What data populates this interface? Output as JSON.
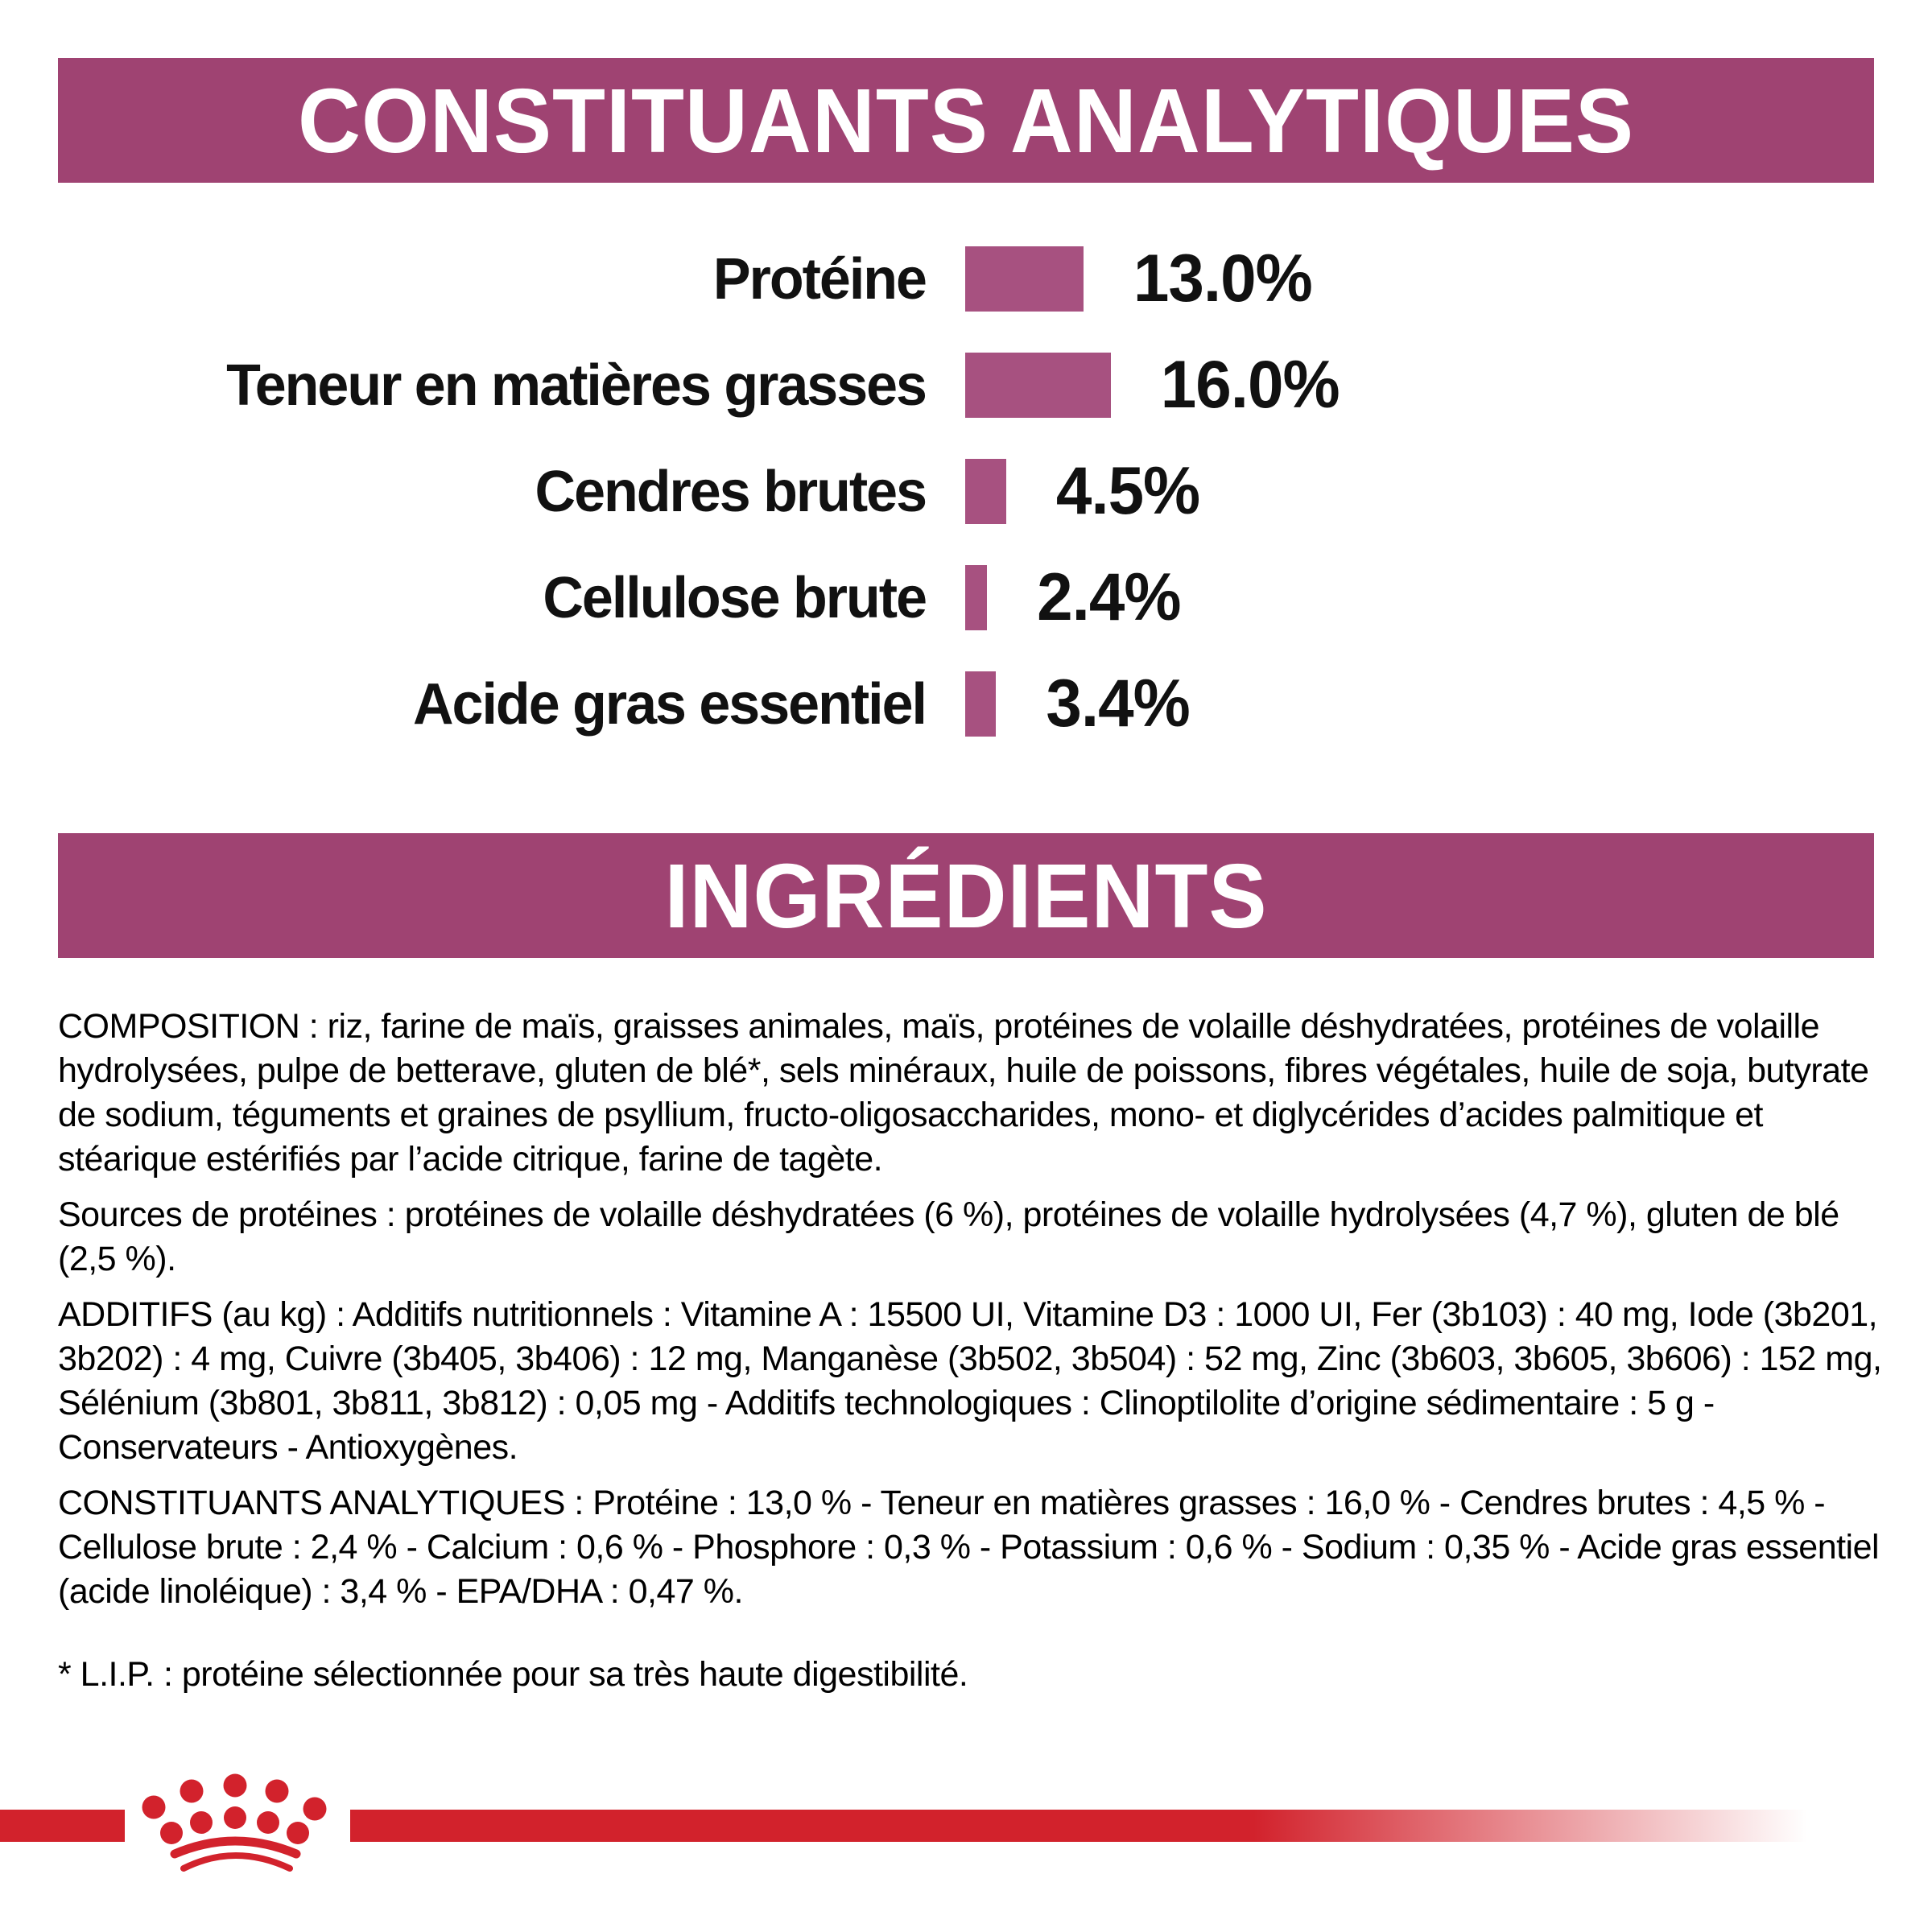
{
  "colors": {
    "band_plum": "#9F4372",
    "bar_magenta": "#A75180",
    "brand_red": "#D2222C",
    "text": "#111111"
  },
  "analytical_constituents": {
    "title": "CONSTITUANTS ANALYTIQUES",
    "rows": [
      {
        "label": "Protéine",
        "value_label": "13.0%",
        "pct": 13.0
      },
      {
        "label": "Teneur en matières grasses",
        "value_label": "16.0%",
        "pct": 16.0
      },
      {
        "label": "Cendres brutes",
        "value_label": "4.5%",
        "pct": 4.5
      },
      {
        "label": "Cellulose brute",
        "value_label": "2.4%",
        "pct": 2.4
      },
      {
        "label": "Acide gras essentiel",
        "value_label": "3.4%",
        "pct": 3.4
      }
    ]
  },
  "chart_data": {
    "type": "bar",
    "orientation": "horizontal",
    "title": "CONSTITUANTS ANALYTIQUES",
    "categories": [
      "Protéine",
      "Teneur en matières grasses",
      "Cendres brutes",
      "Cellulose brute",
      "Acide gras essentiel"
    ],
    "values": [
      13.0,
      16.0,
      4.5,
      2.4,
      3.4
    ],
    "value_labels": [
      "13.0%",
      "16.0%",
      "4.5%",
      "2.4%",
      "3.4%"
    ],
    "unit": "%",
    "xlim": [
      0,
      16
    ],
    "grid": false,
    "legend": false,
    "bar_color": "#A75180"
  },
  "ingredients": {
    "title": "INGRÉDIENTS",
    "paragraphs": [
      "COMPOSITION : riz, farine de maïs, graisses animales, maïs, protéines de volaille déshydratées, protéines de volaille hydrolysées, pulpe de betterave, gluten de blé*, sels minéraux, huile de poissons, fibres végétales, huile de soja, butyrate de sodium, téguments et graines de psyllium, fructo-oligosaccharides, mono- et diglycérides d’acides palmitique et stéarique estérifiés par l’acide citrique, farine de tagète.",
      "Sources de protéines : protéines de volaille déshydratées (6 %), protéines de volaille hydrolysées (4,7 %), gluten de blé (2,5 %).",
      "ADDITIFS (au kg) : Additifs nutritionnels : Vitamine A : 15500 UI, Vitamine D3 : 1000 UI, Fer (3b103) : 40 mg, Iode (3b201, 3b202) : 4 mg, Cuivre (3b405, 3b406) : 12 mg, Manganèse (3b502, 3b504) : 52 mg, Zinc (3b603, 3b605, 3b606) : 152 mg, Sélénium (3b801, 3b811, 3b812) : 0,05 mg - Additifs technologiques : Clinoptilolite d’origine sédimentaire : 5 g - Conservateurs - Antioxygènes.",
      "CONSTITUANTS ANALYTIQUES : Protéine : 13,0 % - Teneur en matières grasses : 16,0 % - Cendres brutes : 4,5 % - Cellulose brute : 2,4 % - Calcium : 0,6 % - Phosphore : 0,3 % - Potassium : 0,6 % - Sodium : 0,35 % - Acide gras essentiel (acide linoléique) : 3,4 % - EPA/DHA : 0,47 %."
    ],
    "footnote": "* L.I.P. : protéine sélectionnée pour sa très haute digestibilité."
  },
  "footer": {
    "logo": "royal-canin-crown-icon"
  }
}
